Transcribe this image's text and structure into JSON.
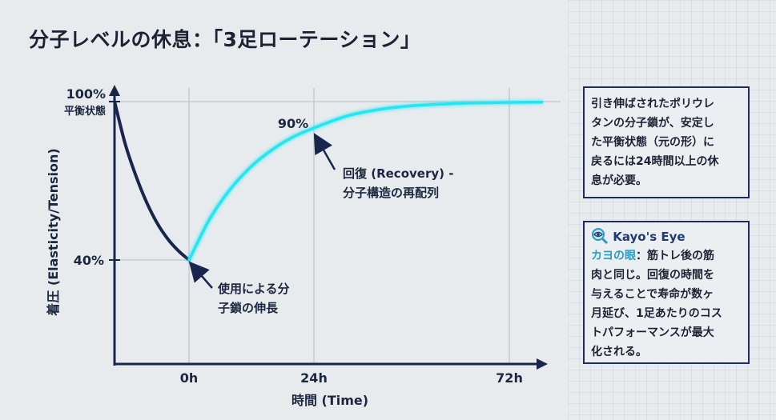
{
  "title": "分子レベルの休息：「3足ローテーション」",
  "chart_data": {
    "type": "line",
    "xlabel": "時間 (Time)",
    "ylabel": "着圧 (Elasticity/Tension)",
    "x_ticks": [
      "0h",
      "24h",
      "72h"
    ],
    "y_ticks": [
      {
        "value": 100,
        "label": "100%",
        "sublabel": "平衡状態"
      },
      {
        "value": 40,
        "label": "40%"
      }
    ],
    "ylim": [
      0,
      100
    ],
    "grid": "at tick marks only",
    "series": [
      {
        "key": "usage",
        "color": "#18264d",
        "points": [
          [
            -14,
            100
          ],
          [
            -12,
            84
          ],
          [
            -10,
            72
          ],
          [
            -8,
            62
          ],
          [
            -6,
            54
          ],
          [
            -4,
            48
          ],
          [
            -2,
            43.5
          ],
          [
            0,
            40
          ]
        ]
      },
      {
        "key": "recovery",
        "color": "#22e6f2",
        "points": [
          [
            0,
            40
          ],
          [
            4,
            55.6
          ],
          [
            8,
            67
          ],
          [
            12,
            75.5
          ],
          [
            16,
            81.8
          ],
          [
            20,
            86.6
          ],
          [
            24,
            90
          ],
          [
            32,
            94.5
          ],
          [
            40,
            97
          ],
          [
            48,
            98.4
          ],
          [
            56,
            99.1
          ],
          [
            64,
            99.5
          ],
          [
            72,
            99.7
          ],
          [
            80,
            99.8
          ]
        ]
      }
    ],
    "annotations": [
      {
        "text": "90%",
        "x": 24,
        "y": 90
      },
      {
        "text_lines": [
          "回復 (Recovery) -",
          "分子構造の再配列"
        ],
        "x": 24,
        "y": 90
      },
      {
        "text_lines": [
          "使用による分",
          "子鎖の伸長"
        ],
        "x": 0,
        "y": 40
      }
    ]
  },
  "info_box": {
    "lines": [
      "引き伸ばされたポリウレ",
      "タンの分子鎖が、安定し",
      "た平衡状態（元の形）に",
      "戻るには24時間以上の休",
      "息が必要。"
    ]
  },
  "kayo_box": {
    "icon": "magnifier-eye-icon",
    "title": "Kayo's Eye",
    "accent_label": "カヨの眼",
    "accent_color": "#2b9bc0",
    "text_first": "：筋トレ後の筋",
    "lines": [
      "肉と同じ。回復の時間を",
      "与えることで寿命が数ヶ",
      "月延び、1足あたりのコス",
      "トパフォーマンスが最大",
      "化される。"
    ]
  }
}
